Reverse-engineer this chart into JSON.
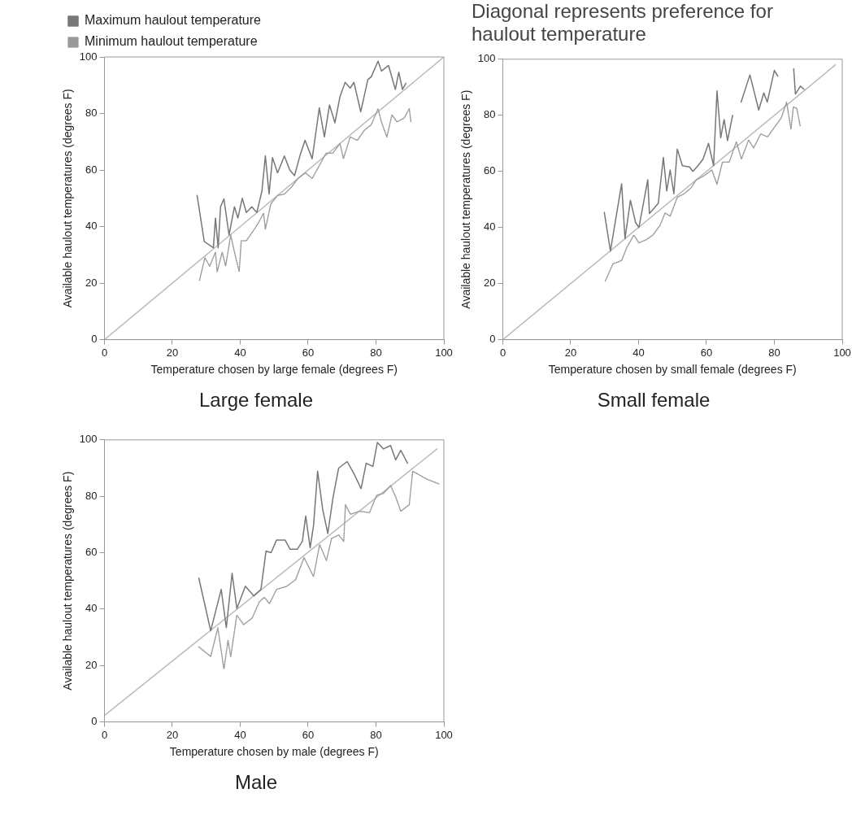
{
  "chart_data": [
    {
      "type": "line",
      "title": "Large female",
      "xlabel": "Temperature chosen by large female (degrees F)",
      "ylabel": "Available haulout temperatures (degrees F)",
      "xlim": [
        0,
        100
      ],
      "ylim": [
        0,
        100
      ],
      "xticks": [
        0,
        20,
        40,
        60,
        80,
        100
      ],
      "yticks": [
        0,
        20,
        40,
        60,
        80,
        100
      ],
      "legend": "top left",
      "marker": "none",
      "series": [
        {
          "name": "Maximum haulout temperature",
          "color": "#777777",
          "line_style": "solid",
          "x": [
            27.3,
            29.4,
            32.1,
            32.7,
            33.5,
            34.2,
            35.2,
            36.7,
            38.3,
            39.3,
            40.6,
            41.8,
            43.4,
            44.9,
            46.4,
            47.4,
            48.5,
            49.5,
            51,
            53,
            54.6,
            56,
            57.7,
            59.1,
            61.2,
            63.3,
            64.8,
            66.3,
            67.9,
            69.4,
            70.9,
            72.4,
            73.5,
            75.5,
            76.5,
            77.6,
            78.6,
            80.6,
            81.6,
            83.7,
            85.7,
            86.7,
            87.8,
            88.8
          ],
          "values": [
            51,
            34.7,
            32.5,
            43,
            32.5,
            47,
            49.8,
            37,
            47,
            43,
            50,
            45,
            47,
            45,
            52.6,
            65,
            51.5,
            64.4,
            59,
            65,
            60,
            58,
            65.5,
            70.5,
            64,
            82,
            71.7,
            83,
            76.7,
            86,
            91,
            89,
            91,
            80.6,
            86,
            92,
            93,
            98.5,
            95,
            97,
            88.5,
            94.6,
            88.5,
            90.7
          ]
        },
        {
          "name": "Minimum haulout temperature",
          "color": "#999999",
          "line_style": "dotted",
          "x": [
            28,
            29.6,
            31,
            32.7,
            33.2,
            34.7,
            35.7,
            37.2,
            38.3,
            39.7,
            40.3,
            41.8,
            43.9,
            45.4,
            46.9,
            47.4,
            49,
            51,
            53,
            55,
            57,
            59.2,
            61.2,
            63.3,
            65.3,
            67.3,
            69.4,
            70.4,
            72.4,
            74.5,
            76.5,
            78.6,
            80.6,
            81.6,
            83.2,
            84.7,
            86.2,
            88.3,
            89.8,
            90.3
          ],
          "values": [
            21,
            29,
            26,
            31,
            24,
            31,
            26,
            37,
            31,
            24,
            35,
            35,
            38.6,
            41.4,
            44.8,
            39,
            48,
            51,
            51.5,
            53.8,
            57,
            59,
            57,
            61.6,
            66,
            66,
            69.4,
            64,
            71.7,
            70.5,
            74,
            76,
            81.7,
            77,
            71.7,
            79.5,
            77,
            78.4,
            81.7,
            77
          ]
        },
        {
          "type": "line",
          "color": "#bbbbbb",
          "line_style": "solid",
          "x": [
            0,
            100
          ],
          "values": [
            0,
            100
          ]
        }
      ]
    },
    {
      "type": "line",
      "title": "Small female",
      "xlabel": "Temperature chosen by small female (degrees F)",
      "ylabel": "Available haulout temperatures (degrees F)",
      "xlim": [
        0,
        100
      ],
      "ylim": [
        0,
        100
      ],
      "xticks": [
        0,
        20,
        40,
        60,
        80,
        100
      ],
      "yticks": [
        0,
        20,
        40,
        60,
        80,
        100
      ],
      "marker": "none",
      "annotations": [
        "Diagonal represents preference for haulout temperature"
      ],
      "series": [
        {
          "color": "#777777",
          "line_style": "solid",
          "x": [
            29.9,
            31.7,
            35,
            36,
            37.6,
            39.1,
            40.1,
            42.7,
            43.2,
            45.8,
            47.3,
            48.3,
            49.3,
            50.4,
            51.4,
            52.9,
            55,
            56,
            57.5,
            59,
            60.6,
            62.1,
            63.1,
            64.2,
            65.2,
            66.2,
            67.7,
            69,
            70.2,
            72.8,
            75.4,
            76.9,
            77.9,
            80,
            81,
            83,
            85.7,
            86.2,
            87.7,
            88.7
          ],
          "values": [
            45.4,
            31.6,
            55.6,
            36,
            49.7,
            41.8,
            40,
            57,
            45,
            48.6,
            65,
            53,
            60.5,
            52,
            68,
            62,
            61.6,
            60,
            62,
            64.4,
            70,
            62,
            88.7,
            72,
            78.5,
            71,
            80,
            null,
            84.7,
            94.4,
            81.9,
            88,
            84.7,
            96,
            94,
            null,
            96.6,
            87.6,
            90.4,
            89.3
          ]
        },
        {
          "color": "#999999",
          "line_style": "dotted",
          "x": [
            30.2,
            32.4,
            35,
            36.5,
            38.6,
            40.1,
            42.2,
            44.2,
            46.3,
            47.8,
            49.3,
            51.4,
            53.4,
            55.5,
            57,
            59,
            61.6,
            63.1,
            64.7,
            66.7,
            68.8,
            70.3,
            72.4,
            73.9,
            76,
            78,
            80,
            82,
            83.6,
            84.9,
            85.6,
            86.6,
            87.6
          ],
          "values": [
            20.9,
            27,
            28.2,
            32.8,
            37.3,
            34.5,
            35.6,
            37.3,
            40.7,
            45.2,
            44,
            50.8,
            52,
            54.2,
            57,
            58.2,
            60.5,
            55.4,
            63.3,
            63.3,
            70.6,
            64.4,
            71.2,
            68.4,
            73.4,
            72.3,
            75.7,
            79,
            84.7,
            75,
            83,
            82.5,
            76.3
          ]
        },
        {
          "type": "line",
          "color": "#bbbbbb",
          "line_style": "solid",
          "x": [
            0,
            98
          ],
          "values": [
            0,
            98
          ]
        }
      ]
    },
    {
      "type": "line",
      "title": "Male",
      "xlabel": "Temperature chosen by male (degrees F)",
      "ylabel": "Available haulout temperatures (degrees F)",
      "xlim": [
        0,
        100
      ],
      "ylim": [
        0,
        100
      ],
      "xticks": [
        0,
        20,
        40,
        60,
        80,
        100
      ],
      "yticks": [
        0,
        20,
        40,
        60,
        80,
        100
      ],
      "marker": "none",
      "series": [
        {
          "color": "#777777",
          "line_style": "solid",
          "x": [
            27.8,
            31.3,
            34.4,
            35.9,
            37.6,
            39,
            41.5,
            44,
            46.1,
            47.6,
            49.1,
            50.7,
            53.2,
            54.7,
            56.8,
            58.3,
            59.3,
            60.6,
            61.6,
            62.8,
            64.3,
            65.8,
            67.3,
            69,
            71.5,
            73.6,
            75.6,
            77.1,
            79.1,
            80.4,
            82.2,
            84.3,
            85.8,
            87.3,
            89.3
          ],
          "values": [
            51,
            32.3,
            47,
            33.4,
            52.7,
            40.2,
            48.1,
            44.7,
            47,
            60.6,
            60,
            64.5,
            64.5,
            61.2,
            61.2,
            64,
            73,
            61.7,
            69.6,
            88.9,
            75.3,
            66.8,
            79.3,
            90,
            92.3,
            87.8,
            82.7,
            91.7,
            90.6,
            99.1,
            96.8,
            98,
            92.9,
            96.3,
            91.7
          ]
        },
        {
          "color": "#999999",
          "line_style": "dotted",
          "x": [
            27.8,
            31.3,
            33.4,
            35.2,
            36.4,
            37.2,
            39,
            41,
            43.5,
            45.6,
            47.1,
            48.6,
            50.7,
            53.7,
            56.3,
            58.8,
            61.6,
            63.4,
            65.4,
            66.9,
            69,
            70.5,
            71,
            72.5,
            75.1,
            78.1,
            80.2,
            82.2,
            84.3,
            85.8,
            87.3,
            89.8,
            90.8,
            94.9,
            98.5
          ],
          "values": [
            26.6,
            23.2,
            33.4,
            18.7,
            28.9,
            23.2,
            37.9,
            34.5,
            36.8,
            42.5,
            44.2,
            41.9,
            47,
            48.1,
            50.4,
            58.3,
            51.5,
            62.9,
            57.2,
            65,
            66.3,
            64,
            77,
            73.6,
            74.7,
            74.2,
            80.4,
            81,
            83.8,
            79.8,
            74.7,
            77,
            88.9,
            86.1,
            84.4
          ]
        },
        {
          "type": "line",
          "color": "#bbbbbb",
          "line_style": "solid",
          "x": [
            0,
            98
          ],
          "values": [
            2.3,
            96.8
          ]
        }
      ]
    }
  ]
}
